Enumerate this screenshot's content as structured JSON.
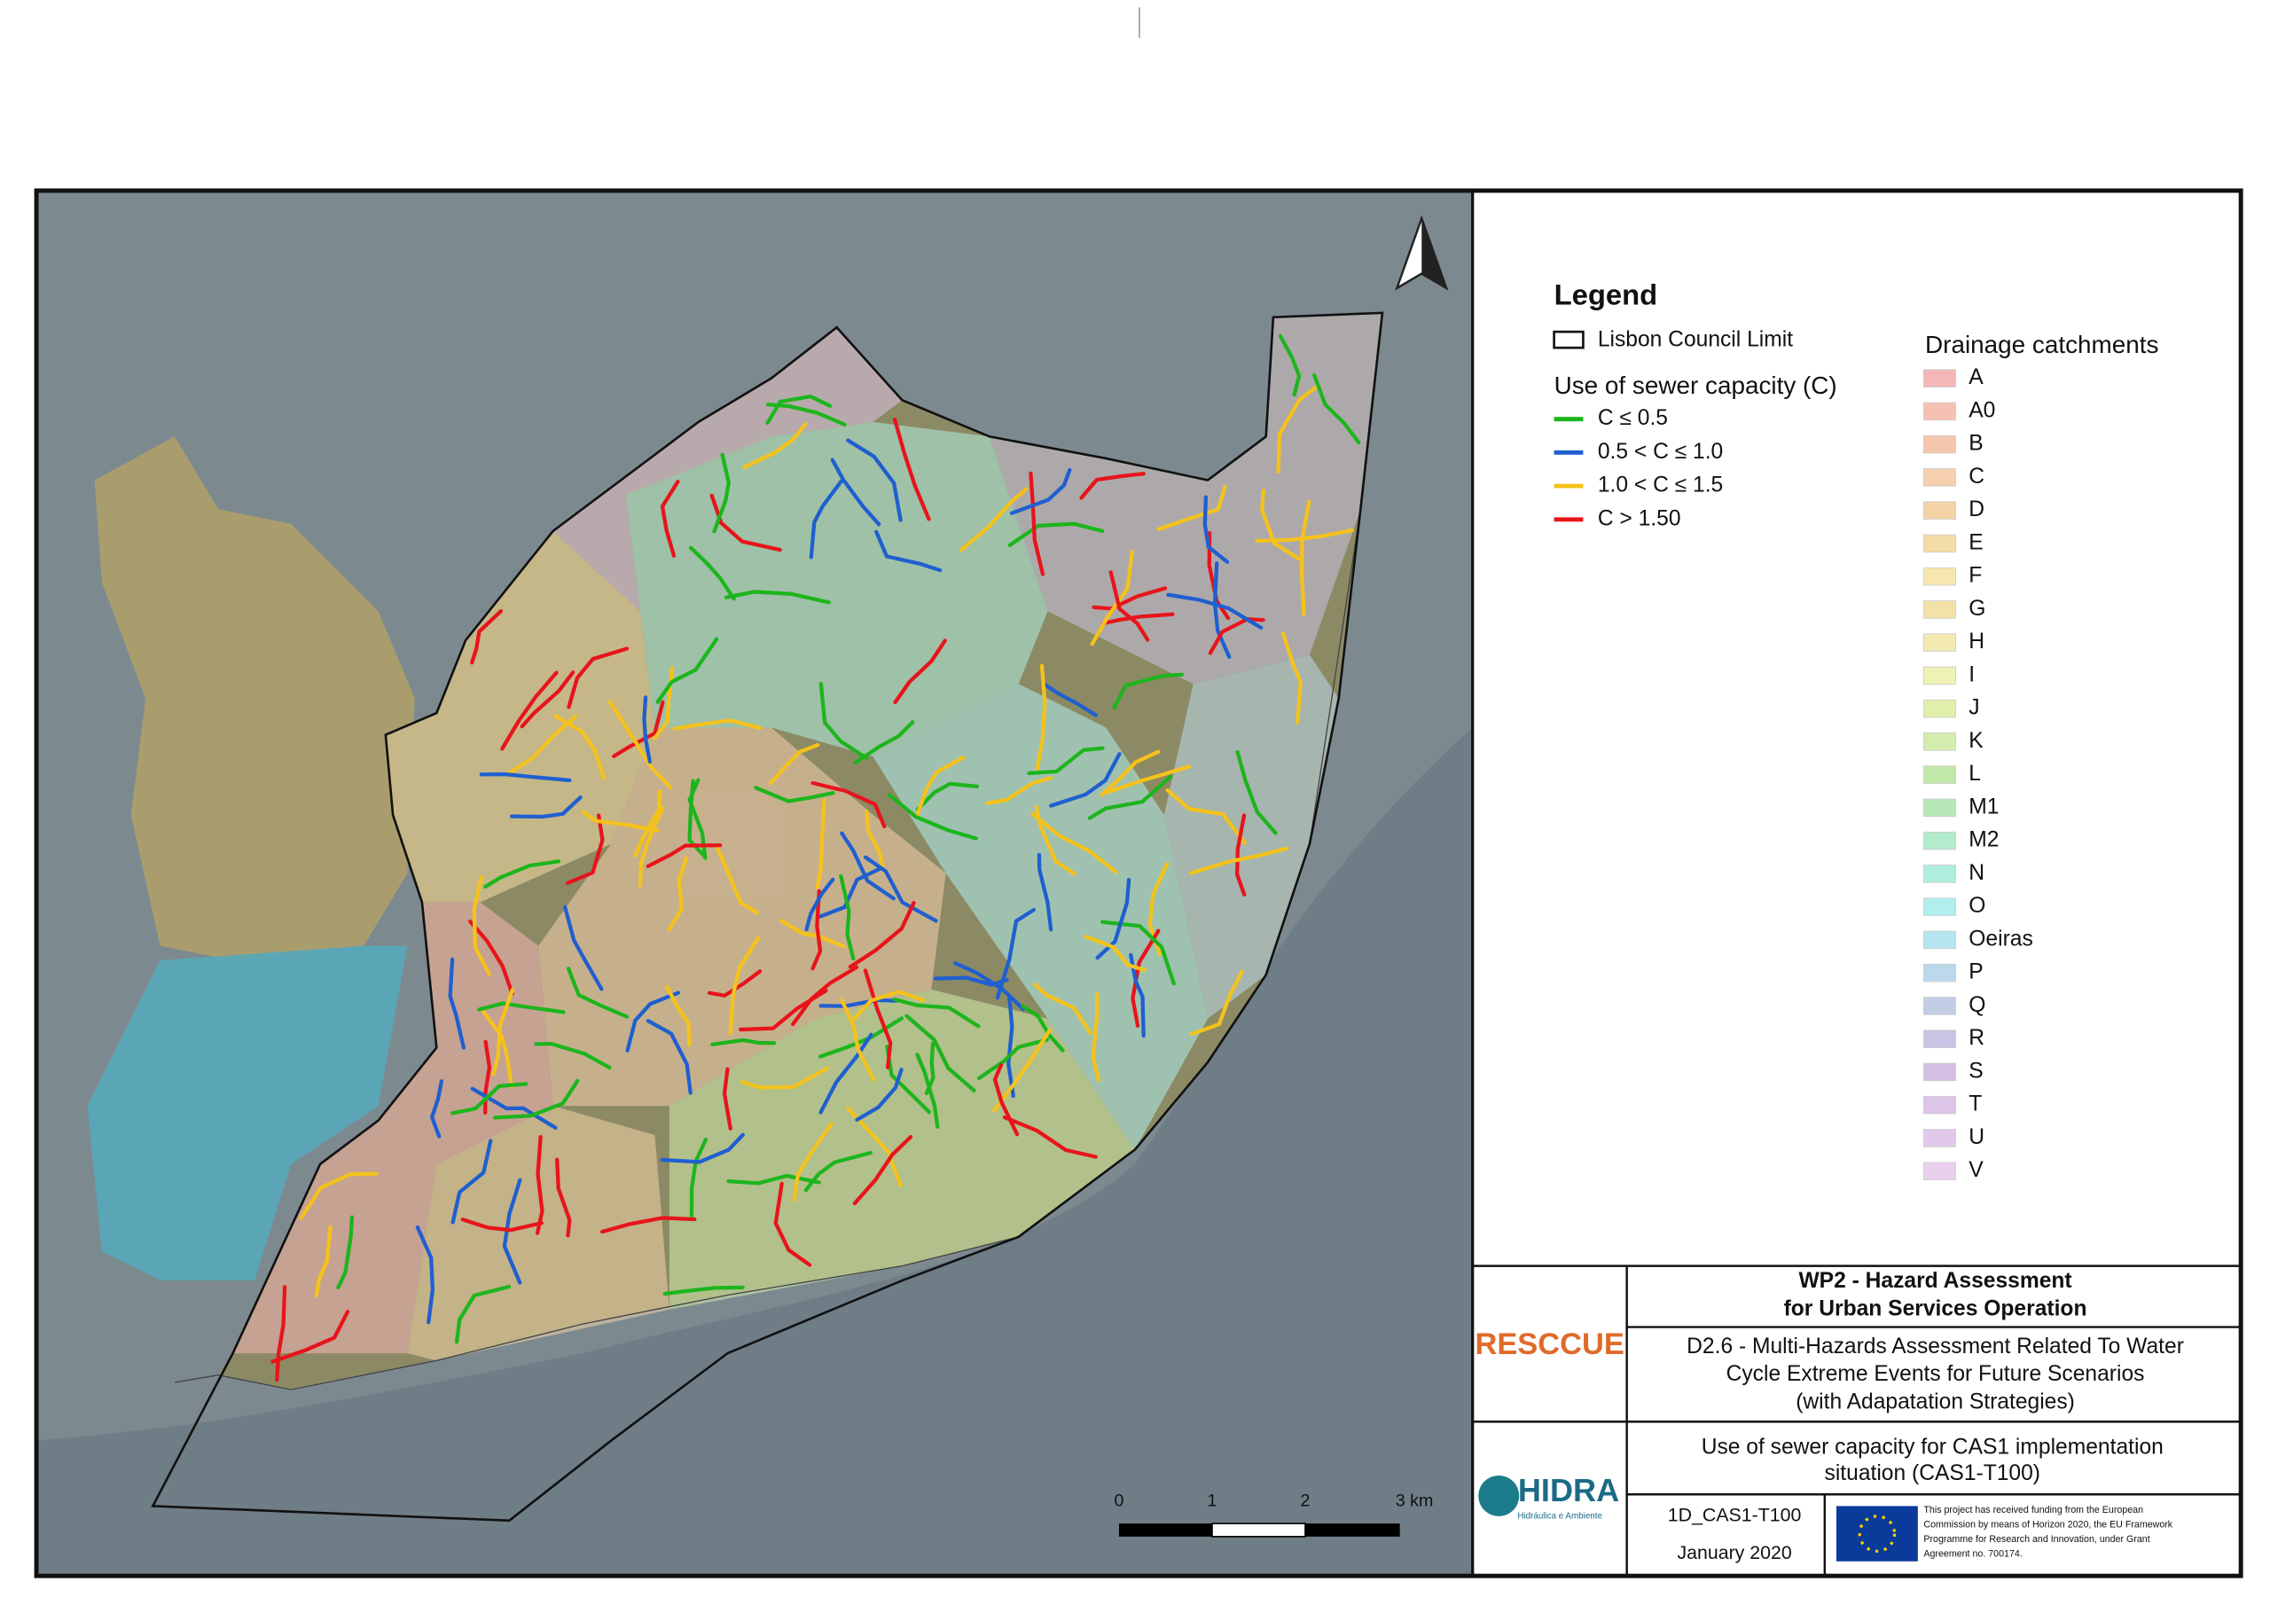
{
  "legend": {
    "title": "Legend",
    "council_limit": "Lisbon Council Limit",
    "capacity": {
      "title": "Use of sewer capacity (C)",
      "items": [
        {
          "label": "C ≤ 0.5",
          "color": "#1db51d"
        },
        {
          "label": "0.5 < C ≤ 1.0",
          "color": "#1f5fd0"
        },
        {
          "label": "1.0 < C ≤ 1.5",
          "color": "#f5c21b"
        },
        {
          "label": "C > 1.50",
          "color": "#e8141b"
        }
      ]
    },
    "catchments": {
      "title": "Drainage catchments",
      "items": [
        {
          "label": "A",
          "color": "#f4b6b6"
        },
        {
          "label": "A0",
          "color": "#f6c0b3"
        },
        {
          "label": "B",
          "color": "#f5c6ad"
        },
        {
          "label": "C",
          "color": "#f6cfae"
        },
        {
          "label": "D",
          "color": "#f3d3a6"
        },
        {
          "label": "E",
          "color": "#f4dca6"
        },
        {
          "label": "F",
          "color": "#f6e7b0"
        },
        {
          "label": "G",
          "color": "#f3e2a8"
        },
        {
          "label": "H",
          "color": "#f2eab0"
        },
        {
          "label": "I",
          "color": "#eef2b3"
        },
        {
          "label": "J",
          "color": "#e0f0aa"
        },
        {
          "label": "K",
          "color": "#d2edac"
        },
        {
          "label": "L",
          "color": "#c1e8a9"
        },
        {
          "label": "M1",
          "color": "#b6e8b8"
        },
        {
          "label": "M2",
          "color": "#b3ebcd"
        },
        {
          "label": "N",
          "color": "#aeeede"
        },
        {
          "label": "O",
          "color": "#b0efee"
        },
        {
          "label": "Oeiras",
          "color": "#b5e6f0"
        },
        {
          "label": "P",
          "color": "#bcd9ec"
        },
        {
          "label": "Q",
          "color": "#c3cde6"
        },
        {
          "label": "R",
          "color": "#c9c3e4"
        },
        {
          "label": "S",
          "color": "#d4bfe3"
        },
        {
          "label": "T",
          "color": "#dcc5e7"
        },
        {
          "label": "U",
          "color": "#e2c9ea"
        },
        {
          "label": "V",
          "color": "#ead0ee"
        }
      ]
    }
  },
  "scale_bar": {
    "labels": [
      "0",
      "1",
      "2",
      "3 km"
    ]
  },
  "title_block": {
    "project": [
      "WP2 - Hazard Assessment",
      "for Urban Services Operation"
    ],
    "deliverable": [
      "D2.6 - Multi-Hazards Assessment Related To Water",
      "Cycle Extreme Events for Future Scenarios",
      "(with Adapatation Strategies)"
    ],
    "map_title": [
      "Use of sewer capacity for CAS1 implementation",
      "situation (CAS1-T100)"
    ],
    "code": "1D_CAS1-T100",
    "date": "January 2020",
    "funding": [
      "This project has received funding from the European",
      "Commission by means of Horizon 2020, the EU Framework",
      "Programme for Research and Innovation, under Grant",
      "Agreement no. 700174."
    ],
    "logo1": "RESCCUE",
    "logo2": "HIDRA",
    "logo2_sub": "Hidráulica e Ambiente"
  }
}
